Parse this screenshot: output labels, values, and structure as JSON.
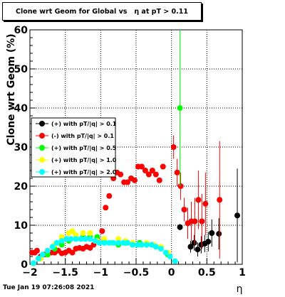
{
  "page": {
    "title": "Clone wrt Geom for Global vs   η at pT > 0.11",
    "footer": "Tue Jan 19 07:26:08 2021"
  },
  "chart_data": {
    "type": "scatter",
    "title": "Clone wrt Geom for Global vs   η at pT > 0.11",
    "xlabel": "η",
    "ylabel": "Clone wrt Geom (%)",
    "xlim": [
      -2,
      1
    ],
    "ylim": [
      0,
      60
    ],
    "xticks": [
      -2,
      -1.5,
      -1,
      -0.5,
      0,
      0.5,
      1
    ],
    "xtick_labels": [
      "−2",
      "−1.5",
      "−1",
      "−0.5",
      "0",
      "0.5",
      "1"
    ],
    "yticks": [
      0,
      10,
      20,
      30,
      40,
      50,
      60
    ],
    "ytick_labels": [
      "0",
      "10",
      "20",
      "30",
      "40",
      "50",
      "60"
    ],
    "grid": true,
    "legend_position": "middle-left",
    "series": [
      {
        "name": "(+) with pT/|q| > 0.1",
        "color": "#000000",
        "points": [
          [
            0.12,
            9.5
          ],
          [
            0.27,
            4.5
          ],
          [
            0.32,
            5.5
          ],
          [
            0.37,
            3.8
          ],
          [
            0.42,
            5.0
          ],
          [
            0.47,
            5.3
          ],
          [
            0.52,
            5.8
          ],
          [
            0.57,
            8.0
          ],
          [
            0.67,
            7.8
          ],
          [
            0.93,
            12.5
          ]
        ],
        "errors": [
          0.8,
          1.5,
          2.0,
          1.8,
          2.2,
          2.2,
          2.5,
          3.5,
          4.0,
          12.0
        ]
      },
      {
        "name": "(-) with pT/|q| > 0.1",
        "color": "#ff0000",
        "points": [
          [
            -1.97,
            3.0
          ],
          [
            -1.93,
            3.0
          ],
          [
            -1.9,
            3.5
          ],
          [
            -1.85,
            2.0
          ],
          [
            -1.8,
            2.5
          ],
          [
            -1.75,
            2.5
          ],
          [
            -1.7,
            3.0
          ],
          [
            -1.65,
            3.0
          ],
          [
            -1.6,
            3.5
          ],
          [
            -1.55,
            2.8
          ],
          [
            -1.5,
            3.0
          ],
          [
            -1.45,
            3.5
          ],
          [
            -1.4,
            3.0
          ],
          [
            -1.35,
            4.0
          ],
          [
            -1.3,
            4.2
          ],
          [
            -1.25,
            4.0
          ],
          [
            -1.2,
            4.5
          ],
          [
            -1.15,
            4.2
          ],
          [
            -1.1,
            5.0
          ],
          [
            -1.05,
            6.5
          ],
          [
            -0.98,
            8.5
          ],
          [
            -0.93,
            14.5
          ],
          [
            -0.88,
            17.5
          ],
          [
            -0.82,
            22.0
          ],
          [
            -0.77,
            23.5
          ],
          [
            -0.72,
            23.0
          ],
          [
            -0.67,
            21.0
          ],
          [
            -0.62,
            21.0
          ],
          [
            -0.57,
            22.0
          ],
          [
            -0.52,
            21.5
          ],
          [
            -0.47,
            25.0
          ],
          [
            -0.42,
            25.0
          ],
          [
            -0.37,
            24.0
          ],
          [
            -0.32,
            23.0
          ],
          [
            -0.27,
            24.0
          ],
          [
            -0.22,
            23.0
          ],
          [
            -0.17,
            21.5
          ],
          [
            -0.12,
            25.0
          ],
          [
            0.03,
            30.0
          ],
          [
            0.08,
            23.5
          ],
          [
            0.13,
            20.0
          ],
          [
            0.18,
            14.0
          ],
          [
            0.23,
            10.5
          ],
          [
            0.28,
            11.0
          ],
          [
            0.33,
            11.0
          ],
          [
            0.38,
            16.5
          ],
          [
            0.43,
            11.0
          ],
          [
            0.48,
            15.5
          ],
          [
            0.68,
            16.5
          ]
        ],
        "errors": [
          0,
          0,
          0,
          0,
          0,
          0,
          0,
          0,
          0,
          0,
          0,
          0,
          0,
          0,
          0,
          0,
          0,
          0,
          0,
          0,
          0,
          0,
          0,
          0,
          0,
          0,
          0,
          0,
          0,
          0,
          0,
          0,
          0,
          0,
          0,
          0,
          0,
          0,
          3.0,
          3.5,
          3.5,
          3.0,
          4.0,
          5.0,
          6.0,
          7.5,
          7.0,
          8.0,
          15.0
        ]
      },
      {
        "name": "(+) with pT/|q| > 0.5",
        "color": "#00ff00",
        "points": [
          [
            -1.95,
            0.2
          ],
          [
            -1.85,
            1.5
          ],
          [
            -1.75,
            2.5
          ],
          [
            -1.65,
            4.0
          ],
          [
            -1.55,
            5.0
          ],
          [
            -1.45,
            6.0
          ],
          [
            -1.35,
            6.5
          ],
          [
            -1.25,
            7.0
          ],
          [
            -1.15,
            7.0
          ],
          [
            -1.05,
            7.0
          ],
          [
            -0.95,
            6.0
          ],
          [
            -0.85,
            5.5
          ],
          [
            -0.75,
            5.0
          ],
          [
            -0.65,
            5.5
          ],
          [
            -0.55,
            5.0
          ],
          [
            -0.45,
            5.5
          ],
          [
            -0.35,
            5.0
          ],
          [
            -0.25,
            5.0
          ],
          [
            -0.15,
            4.0
          ],
          [
            -0.05,
            2.5
          ],
          [
            0.05,
            0.8
          ],
          [
            0.12,
            40.0
          ]
        ],
        "errors": [
          0,
          0,
          0,
          0,
          0,
          0,
          0,
          0,
          0,
          0,
          0,
          0,
          0,
          0,
          0,
          0,
          0,
          0,
          0,
          0,
          0,
          20.0
        ]
      },
      {
        "name": "(+) with pT/|q| > 1.0",
        "color": "#ffff00",
        "points": [
          [
            -1.95,
            0.2
          ],
          [
            -1.85,
            1.5
          ],
          [
            -1.75,
            3.5
          ],
          [
            -1.65,
            5.0
          ],
          [
            -1.55,
            7.0
          ],
          [
            -1.45,
            8.0
          ],
          [
            -1.4,
            8.5
          ],
          [
            -1.35,
            7.5
          ],
          [
            -1.25,
            8.0
          ],
          [
            -1.15,
            8.0
          ],
          [
            -1.05,
            6.0
          ],
          [
            -0.95,
            6.5
          ],
          [
            -0.85,
            5.5
          ],
          [
            -0.75,
            6.5
          ],
          [
            -0.65,
            6.0
          ],
          [
            -0.55,
            5.5
          ],
          [
            -0.45,
            5.0
          ],
          [
            -0.35,
            5.5
          ],
          [
            -0.25,
            5.0
          ],
          [
            -0.15,
            4.5
          ],
          [
            -0.05,
            3.0
          ],
          [
            0.05,
            0.8
          ]
        ],
        "errors": []
      },
      {
        "name": "(+) with pT/|q| > 2.0",
        "color": "#00ffff",
        "points": [
          [
            -1.95,
            0.3
          ],
          [
            -1.88,
            1.5
          ],
          [
            -1.82,
            2.5
          ],
          [
            -1.75,
            3.5
          ],
          [
            -1.68,
            4.5
          ],
          [
            -1.62,
            5.5
          ],
          [
            -1.55,
            6.0
          ],
          [
            -1.48,
            6.5
          ],
          [
            -1.42,
            6.5
          ],
          [
            -1.35,
            6.5
          ],
          [
            -1.28,
            6.5
          ],
          [
            -1.22,
            6.5
          ],
          [
            -1.15,
            6.5
          ],
          [
            -1.08,
            6.0
          ],
          [
            -1.02,
            5.5
          ],
          [
            -0.95,
            5.5
          ],
          [
            -0.88,
            5.5
          ],
          [
            -0.82,
            5.5
          ],
          [
            -0.75,
            5.5
          ],
          [
            -0.68,
            5.5
          ],
          [
            -0.62,
            5.5
          ],
          [
            -0.55,
            5.0
          ],
          [
            -0.48,
            5.0
          ],
          [
            -0.42,
            5.0
          ],
          [
            -0.35,
            5.0
          ],
          [
            -0.28,
            5.0
          ],
          [
            -0.22,
            4.5
          ],
          [
            -0.15,
            4.0
          ],
          [
            -0.08,
            3.0
          ],
          [
            -0.02,
            2.0
          ],
          [
            0.05,
            0.8
          ]
        ],
        "errors": []
      }
    ]
  }
}
